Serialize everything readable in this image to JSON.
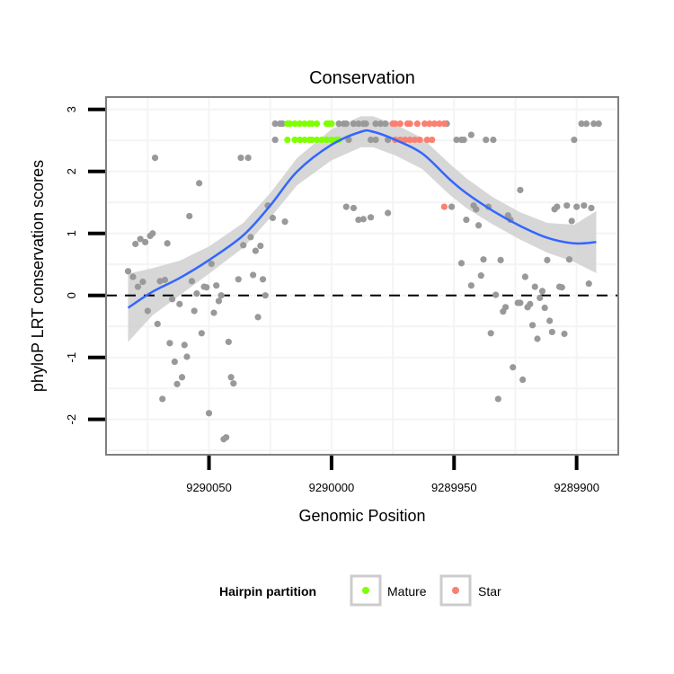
{
  "chart_data": {
    "type": "scatter",
    "title": "Conservation",
    "xlabel": "Genomic Position",
    "ylabel": "phyloP LRT conservation scores",
    "xlim": [
      9290092,
      9289883
    ],
    "x_reversed": true,
    "ylim": [
      -2.57,
      3.2
    ],
    "xticks": [
      9290050,
      9290000,
      9289950,
      9289900
    ],
    "xtick_labels": [
      "9290050",
      "9290000",
      "9289950",
      "9289900"
    ],
    "yticks": [
      3,
      2,
      1,
      0,
      -1,
      -2
    ],
    "ytick_labels": [
      "3",
      "2",
      "1",
      "0",
      "-1",
      "-2"
    ],
    "grid": true,
    "reference_line": {
      "y": 0,
      "style": "dashed"
    },
    "colors": {
      "other": "#999999",
      "Mature": "#7FFF00",
      "Star": "#FA8072",
      "smooth": "#3366FF",
      "band": "#D3D3D3"
    },
    "legend": {
      "title": "Hairpin partition",
      "entries": [
        "Mature",
        "Star"
      ],
      "placement": "bottom"
    },
    "series": [
      {
        "name": "other",
        "points": [
          [
            9290072,
            2.22
          ],
          [
            9290037,
            2.22
          ],
          [
            9290034,
            2.22
          ],
          [
            9290054,
            1.81
          ],
          [
            9290058,
            1.28
          ],
          [
            9290080,
            0.83
          ],
          [
            9290078,
            0.91
          ],
          [
            9290076,
            0.86
          ],
          [
            9290074,
            0.96
          ],
          [
            9290073,
            1.0
          ],
          [
            9290067,
            0.84
          ],
          [
            9290083,
            0.39
          ],
          [
            9290081,
            0.3
          ],
          [
            9290079,
            0.14
          ],
          [
            9290077,
            0.22
          ],
          [
            9290070,
            0.23
          ],
          [
            9290068,
            0.25
          ],
          [
            9290075,
            -0.25
          ],
          [
            9290071,
            -0.46
          ],
          [
            9290065,
            -0.06
          ],
          [
            9290062,
            -0.14
          ],
          [
            9290057,
            0.23
          ],
          [
            9290055,
            0.03
          ],
          [
            9290056,
            -0.25
          ],
          [
            9290052,
            0.14
          ],
          [
            9290051,
            0.13
          ],
          [
            9290049,
            0.51
          ],
          [
            9290047,
            0.16
          ],
          [
            9290046,
            -0.09
          ],
          [
            9290045,
            0.0
          ],
          [
            9290048,
            -0.28
          ],
          [
            9290053,
            -0.61
          ],
          [
            9290066,
            -0.77
          ],
          [
            9290060,
            -0.8
          ],
          [
            9290059,
            -0.99
          ],
          [
            9290064,
            -1.07
          ],
          [
            9290061,
            -1.32
          ],
          [
            9290063,
            -1.43
          ],
          [
            9290069,
            -1.67
          ],
          [
            9290050,
            -1.9
          ],
          [
            9290043,
            -2.29
          ],
          [
            9290044,
            -2.32
          ],
          [
            9290042,
            -0.75
          ],
          [
            9290041,
            -1.32
          ],
          [
            9290040,
            -1.42
          ],
          [
            9290038,
            0.26
          ],
          [
            9290032,
            0.33
          ],
          [
            9290028,
            0.26
          ],
          [
            9290027,
            0.0
          ],
          [
            9290030,
            -0.35
          ],
          [
            9290033,
            0.94
          ],
          [
            9290036,
            0.81
          ],
          [
            9290031,
            0.72
          ],
          [
            9290029,
            0.8
          ],
          [
            9290026,
            1.45
          ],
          [
            9290024,
            1.25
          ],
          [
            9290019,
            1.19
          ],
          [
            9289994,
            1.43
          ],
          [
            9289991,
            1.41
          ],
          [
            9289989,
            1.22
          ],
          [
            9289987,
            1.23
          ],
          [
            9289984,
            1.26
          ],
          [
            9289977,
            1.33
          ],
          [
            9289951,
            1.43
          ],
          [
            9289942,
            1.45
          ],
          [
            9289941,
            1.39
          ],
          [
            9289936,
            1.43
          ],
          [
            9289928,
            1.29
          ],
          [
            9289927,
            1.22
          ],
          [
            9289945,
            1.22
          ],
          [
            9289940,
            1.13
          ],
          [
            9289923,
            1.7
          ],
          [
            9289909,
            1.39
          ],
          [
            9289908,
            1.43
          ],
          [
            9289904,
            1.45
          ],
          [
            9289900,
            1.43
          ],
          [
            9289897,
            1.45
          ],
          [
            9289894,
            1.41
          ],
          [
            9289902,
            1.2
          ],
          [
            9289947,
            0.52
          ],
          [
            9289938,
            0.58
          ],
          [
            9289931,
            0.57
          ],
          [
            9289912,
            0.57
          ],
          [
            9289903,
            0.58
          ],
          [
            9289939,
            0.32
          ],
          [
            9289943,
            0.16
          ],
          [
            9289921,
            0.3
          ],
          [
            9289917,
            0.14
          ],
          [
            9289914,
            0.07
          ],
          [
            9289907,
            0.14
          ],
          [
            9289906,
            0.13
          ],
          [
            9289895,
            0.19
          ],
          [
            9289933,
            0.01
          ],
          [
            9289924,
            -0.12
          ],
          [
            9289923,
            -0.12
          ],
          [
            9289915,
            -0.04
          ],
          [
            9289919,
            -0.14
          ],
          [
            9289920,
            -0.19
          ],
          [
            9289929,
            -0.19
          ],
          [
            9289930,
            -0.26
          ],
          [
            9289913,
            -0.2
          ],
          [
            9289911,
            -0.41
          ],
          [
            9289918,
            -0.48
          ],
          [
            9289935,
            -0.61
          ],
          [
            9289910,
            -0.59
          ],
          [
            9289905,
            -0.62
          ],
          [
            9289916,
            -0.7
          ],
          [
            9289926,
            -1.16
          ],
          [
            9289922,
            -1.36
          ],
          [
            9289932,
            -1.67
          ],
          [
            9290023,
            2.77
          ],
          [
            9290021,
            2.77
          ],
          [
            9290020,
            2.77
          ],
          [
            9289997,
            2.77
          ],
          [
            9289995,
            2.77
          ],
          [
            9289994,
            2.77
          ],
          [
            9289991,
            2.77
          ],
          [
            9289989,
            2.77
          ],
          [
            9289987,
            2.77
          ],
          [
            9289986,
            2.77
          ],
          [
            9289982,
            2.77
          ],
          [
            9289980,
            2.77
          ],
          [
            9289978,
            2.77
          ],
          [
            9289953,
            2.77
          ],
          [
            9289898,
            2.77
          ],
          [
            9289896,
            2.77
          ],
          [
            9289893,
            2.77
          ],
          [
            9289891,
            2.77
          ],
          [
            9290023,
            2.51
          ],
          [
            9289993,
            2.51
          ],
          [
            9289984,
            2.51
          ],
          [
            9289982,
            2.51
          ],
          [
            9289977,
            2.51
          ],
          [
            9289949,
            2.51
          ],
          [
            9289947,
            2.51
          ],
          [
            9289946,
            2.51
          ],
          [
            9289937,
            2.51
          ],
          [
            9289934,
            2.51
          ],
          [
            9289901,
            2.51
          ],
          [
            9289943,
            2.59
          ]
        ]
      },
      {
        "name": "Mature",
        "points": [
          [
            9290018,
            2.77
          ],
          [
            9290017,
            2.77
          ],
          [
            9290015,
            2.77
          ],
          [
            9290013,
            2.77
          ],
          [
            9290011,
            2.77
          ],
          [
            9290009,
            2.77
          ],
          [
            9290008,
            2.77
          ],
          [
            9290006,
            2.77
          ],
          [
            9290002,
            2.77
          ],
          [
            9290001,
            2.77
          ],
          [
            9290000,
            2.77
          ],
          [
            9290018,
            2.51
          ],
          [
            9290015,
            2.51
          ],
          [
            9290013,
            2.51
          ],
          [
            9290011,
            2.51
          ],
          [
            9290009,
            2.51
          ],
          [
            9290008,
            2.51
          ],
          [
            9290006,
            2.51
          ],
          [
            9290004,
            2.51
          ],
          [
            9290002,
            2.51
          ],
          [
            9290000,
            2.51
          ],
          [
            9289998,
            2.51
          ],
          [
            9289997,
            2.51
          ]
        ]
      },
      {
        "name": "Star",
        "points": [
          [
            9289975,
            2.77
          ],
          [
            9289974,
            2.77
          ],
          [
            9289972,
            2.77
          ],
          [
            9289969,
            2.77
          ],
          [
            9289968,
            2.77
          ],
          [
            9289965,
            2.77
          ],
          [
            9289962,
            2.77
          ],
          [
            9289960,
            2.77
          ],
          [
            9289958,
            2.77
          ],
          [
            9289956,
            2.77
          ],
          [
            9289954,
            2.77
          ],
          [
            9289974,
            2.51
          ],
          [
            9289972,
            2.51
          ],
          [
            9289970,
            2.51
          ],
          [
            9289968,
            2.51
          ],
          [
            9289966,
            2.51
          ],
          [
            9289964,
            2.51
          ],
          [
            9289961,
            2.51
          ],
          [
            9289959,
            2.51
          ],
          [
            9289954,
            1.43
          ]
        ]
      }
    ],
    "smooth": {
      "x": [
        9290083,
        9290073,
        9290062,
        9290050,
        9290036,
        9290025,
        9290014,
        9290000,
        9289988,
        9289983,
        9289974,
        9289963,
        9289952,
        9289945,
        9289934,
        9289923,
        9289912,
        9289901,
        9289892
      ],
      "y": [
        -0.2,
        0.06,
        0.28,
        0.57,
        0.97,
        1.45,
        2.0,
        2.43,
        2.64,
        2.64,
        2.51,
        2.29,
        1.88,
        1.65,
        1.36,
        1.12,
        0.93,
        0.84,
        0.86
      ],
      "se": [
        0.55,
        0.38,
        0.28,
        0.22,
        0.2,
        0.2,
        0.22,
        0.25,
        0.25,
        0.25,
        0.25,
        0.25,
        0.25,
        0.24,
        0.22,
        0.22,
        0.24,
        0.3,
        0.5
      ]
    }
  }
}
